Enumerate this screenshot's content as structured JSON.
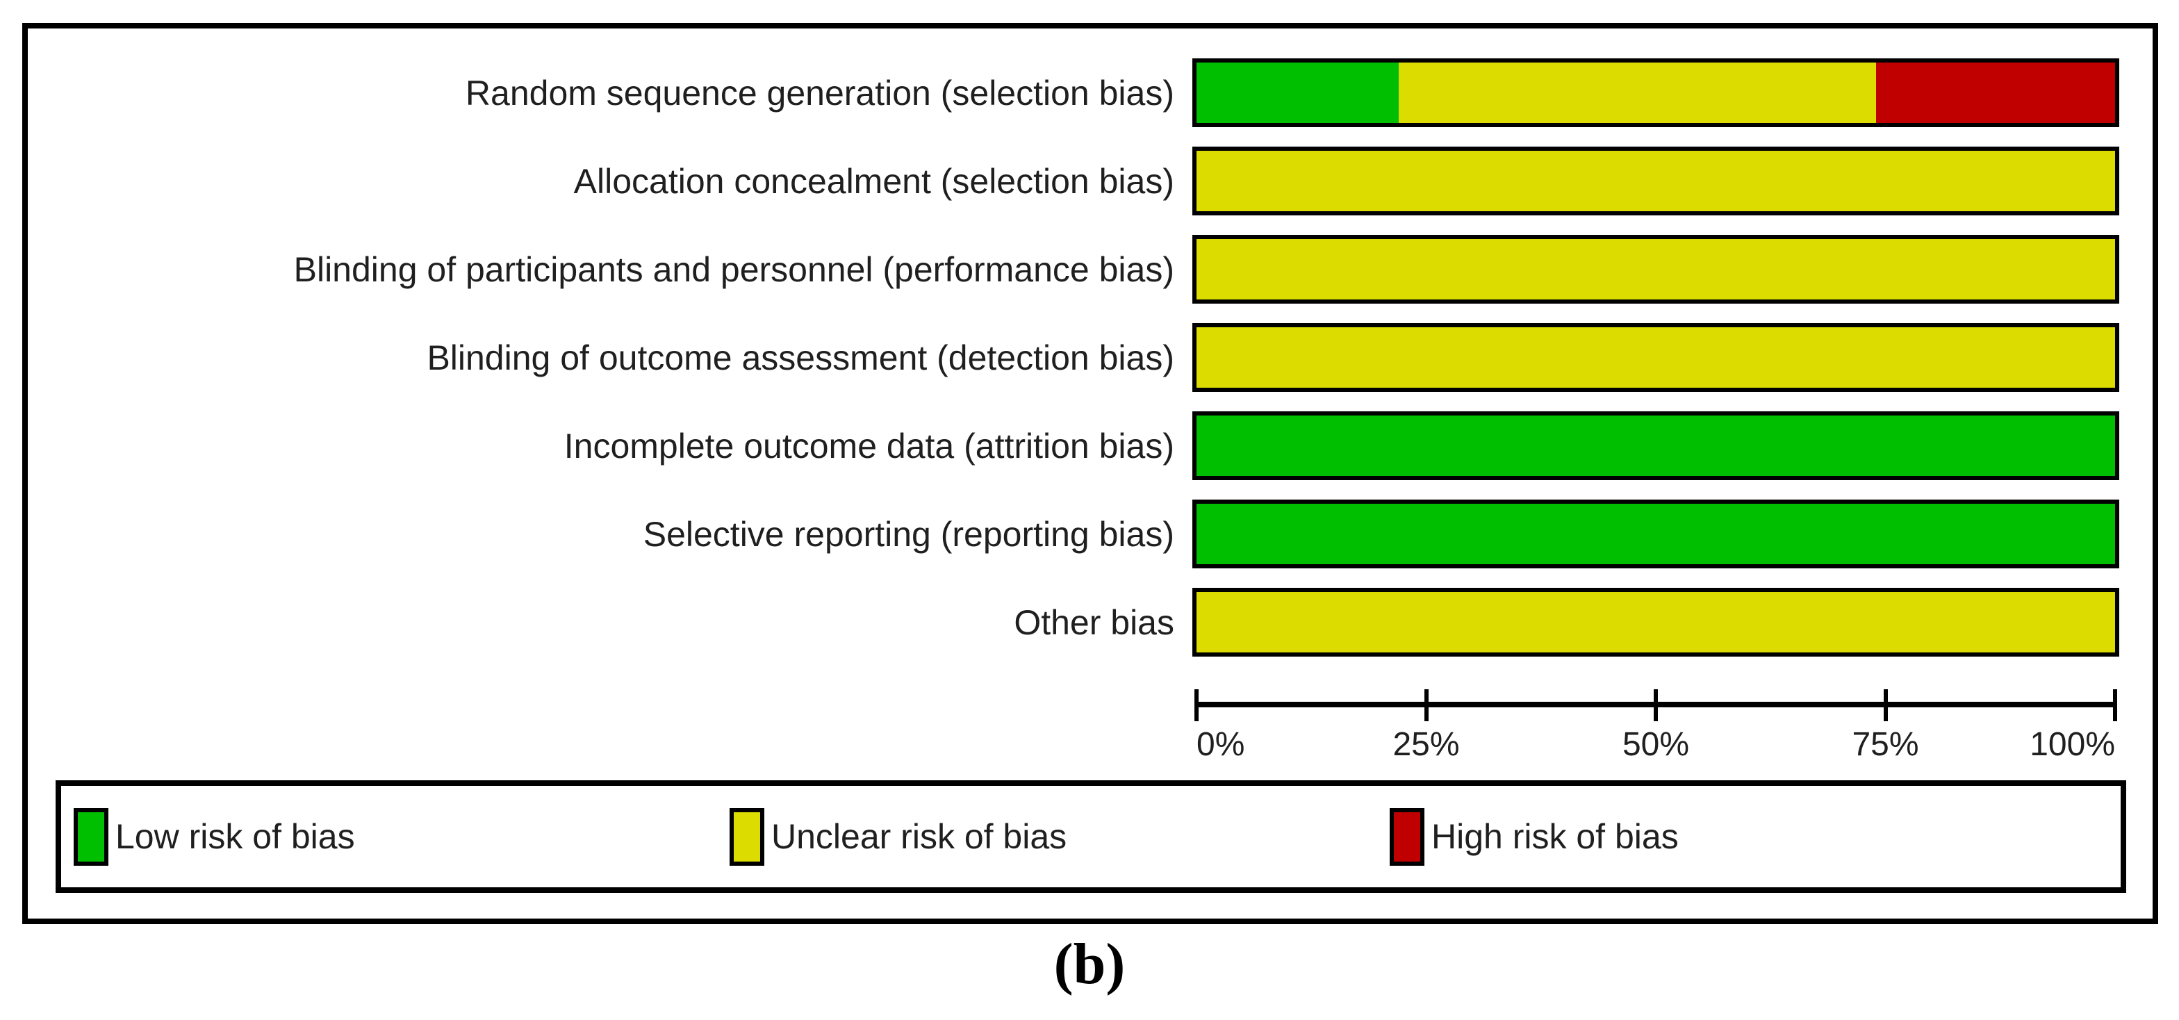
{
  "figure": {
    "caption": "(b)"
  },
  "axis": {
    "tick_labels": [
      "0%",
      "25%",
      "50%",
      "75%",
      "100%"
    ]
  },
  "legend": {
    "items": [
      {
        "key": "low",
        "label": "Low risk of bias",
        "color": "#00BE00"
      },
      {
        "key": "unclear",
        "label": "Unclear risk of bias",
        "color": "#DCDC00"
      },
      {
        "key": "high",
        "label": "High risk of bias",
        "color": "#C00000"
      }
    ]
  },
  "colors": {
    "low_risk": "#00BE00",
    "unclear_risk": "#DCDC00",
    "high_risk": "#C00000",
    "border": "#000000"
  },
  "chart_data": {
    "type": "bar",
    "orientation": "horizontal",
    "stacked": true,
    "categories": [
      "Random sequence generation (selection bias)",
      "Allocation concealment (selection bias)",
      "Blinding of participants and personnel (performance bias)",
      "Blinding of outcome assessment (detection bias)",
      "Incomplete outcome data (attrition bias)",
      "Selective reporting (reporting bias)",
      "Other bias"
    ],
    "series": [
      {
        "name": "Low risk of bias",
        "color": "#00BE00",
        "values": [
          22,
          0,
          0,
          0,
          100,
          100,
          0
        ]
      },
      {
        "name": "Unclear risk of bias",
        "color": "#DCDC00",
        "values": [
          52,
          100,
          100,
          100,
          0,
          0,
          100
        ]
      },
      {
        "name": "High risk of bias",
        "color": "#C00000",
        "values": [
          26,
          0,
          0,
          0,
          0,
          0,
          0
        ]
      }
    ],
    "xlim": [
      0,
      100
    ],
    "x_tick_labels": [
      "0%",
      "25%",
      "50%",
      "75%",
      "100%"
    ],
    "legend_position": "bottom",
    "grid": false
  }
}
